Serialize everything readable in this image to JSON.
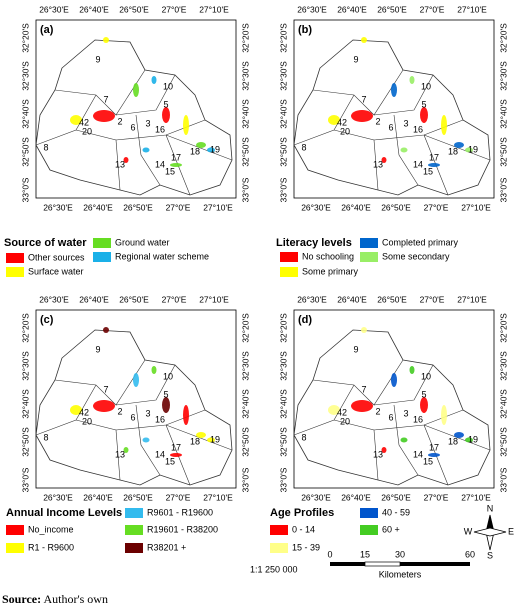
{
  "panels": [
    {
      "label": "(a)",
      "legend_title": "Source of water",
      "legend": [
        {
          "name": "Other sources",
          "color": "#ff0000"
        },
        {
          "name": "Surface water",
          "color": "#ffff00"
        },
        {
          "name": "Ground water",
          "color": "#66dd22"
        },
        {
          "name": "Regional water scheme",
          "color": "#1ab0e8"
        }
      ]
    },
    {
      "label": "(b)",
      "legend_title": "Literacy levels",
      "legend": [
        {
          "name": "No schooling",
          "color": "#ff0000"
        },
        {
          "name": "Some primary",
          "color": "#ffff00"
        },
        {
          "name": "Completed primary",
          "color": "#0066cc"
        },
        {
          "name": "Some secondary",
          "color": "#99ee66"
        }
      ]
    },
    {
      "label": "(c)",
      "legend_title": "Annual Income Levels",
      "legend": [
        {
          "name": "No_income",
          "color": "#ff0000"
        },
        {
          "name": "R1 - R9600",
          "color": "#ffff00"
        },
        {
          "name": "R9601 - R19600",
          "color": "#33bbee"
        },
        {
          "name": "R19601 - R38200",
          "color": "#66dd22"
        },
        {
          "name": "R38201 +",
          "color": "#6b0000"
        }
      ]
    },
    {
      "label": "(d)",
      "legend_title": "Age Profiles",
      "legend": [
        {
          "name": "0 - 14",
          "color": "#ff0000"
        },
        {
          "name": "15 - 39",
          "color": "#ffff88"
        },
        {
          "name": "40 - 59",
          "color": "#0055cc"
        },
        {
          "name": "60 +",
          "color": "#44cc22"
        }
      ]
    }
  ],
  "lon_ticks": [
    "26°30'E",
    "26°40'E",
    "26°50'E",
    "27°0'E",
    "27°10'E"
  ],
  "lat_ticks": [
    "32°20'S",
    "32°30'S",
    "32°40'S",
    "32°50'S",
    "33°0'S"
  ],
  "region_labels": [
    "9",
    "7",
    "10",
    "5",
    "42",
    "20",
    "2",
    "6",
    "3",
    "16",
    "8",
    "13",
    "14",
    "15",
    "17",
    "18",
    "19"
  ],
  "scale": {
    "text": "1:1 250 000",
    "ticks": [
      "0",
      "15",
      "30",
      "60"
    ],
    "unit": "Kilometers"
  },
  "compass": {
    "n": "N",
    "e": "E",
    "s": "S",
    "w": "W"
  },
  "source": {
    "label": "Source:",
    "text": "Author's own"
  }
}
